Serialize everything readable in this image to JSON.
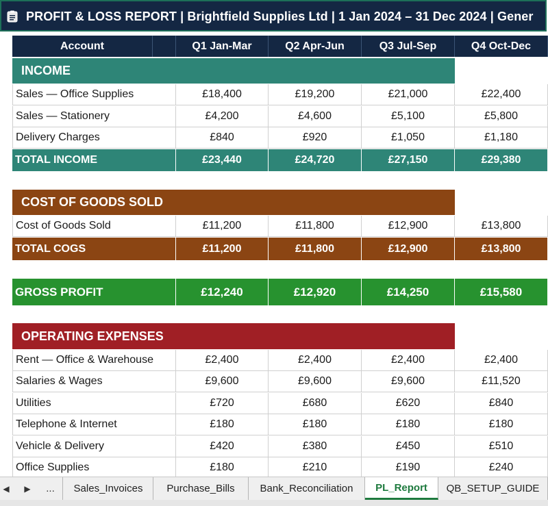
{
  "title": "PROFIT & LOSS REPORT  |  Brightfield Supplies Ltd  |  1 Jan 2024 – 31 Dec 2024  |  Gener",
  "headers": [
    "Account",
    "Q1 Jan-Mar",
    "Q2 Apr-Jun",
    "Q3 Jul-Sep",
    "Q4 Oct-Dec"
  ],
  "income": {
    "label": "INCOME",
    "rows": [
      {
        "account": "Sales — Office Supplies",
        "values": [
          "£18,400",
          "£19,200",
          "£21,000",
          "£22,400"
        ]
      },
      {
        "account": "Sales — Stationery",
        "values": [
          "£4,200",
          "£4,600",
          "£5,100",
          "£5,800"
        ]
      },
      {
        "account": "Delivery Charges",
        "values": [
          "£840",
          "£920",
          "£1,050",
          "£1,180"
        ]
      }
    ],
    "total": {
      "account": "TOTAL INCOME",
      "values": [
        "£23,440",
        "£24,720",
        "£27,150",
        "£29,380"
      ]
    }
  },
  "cogs": {
    "label": "COST OF GOODS SOLD",
    "rows": [
      {
        "account": "Cost of Goods Sold",
        "values": [
          "£11,200",
          "£11,800",
          "£12,900",
          "£13,800"
        ]
      }
    ],
    "total": {
      "account": "TOTAL COGS",
      "values": [
        "£11,200",
        "£11,800",
        "£12,900",
        "£13,800"
      ]
    }
  },
  "gross": {
    "account": "GROSS PROFIT",
    "values": [
      "£12,240",
      "£12,920",
      "£14,250",
      "£15,580"
    ]
  },
  "opex": {
    "label": "OPERATING EXPENSES",
    "rows": [
      {
        "account": "Rent — Office & Warehouse",
        "values": [
          "£2,400",
          "£2,400",
          "£2,400",
          "£2,400"
        ]
      },
      {
        "account": "Salaries & Wages",
        "values": [
          "£9,600",
          "£9,600",
          "£9,600",
          "£11,520"
        ]
      },
      {
        "account": "Utilities",
        "values": [
          "£720",
          "£680",
          "£620",
          "£840"
        ]
      },
      {
        "account": "Telephone & Internet",
        "values": [
          "£180",
          "£180",
          "£180",
          "£180"
        ]
      },
      {
        "account": "Vehicle & Delivery",
        "values": [
          "£420",
          "£380",
          "£450",
          "£510"
        ]
      },
      {
        "account": "Office Supplies",
        "values": [
          "£180",
          "£210",
          "£190",
          "£240"
        ]
      }
    ]
  },
  "tabs": {
    "prev": "◀",
    "next": "▶",
    "more": "...",
    "items": [
      "Sales_Invoices",
      "Purchase_Bills",
      "Bank_Reconciliation",
      "PL_Report",
      "QB_SETUP_GUIDE"
    ],
    "active": "PL_Report"
  },
  "colors": {
    "header": "#142743",
    "income": "#2e8577",
    "cogs": "#8b4513",
    "gross": "#27922f",
    "opex": "#a01f25"
  },
  "icons": [
    "document-icon"
  ]
}
